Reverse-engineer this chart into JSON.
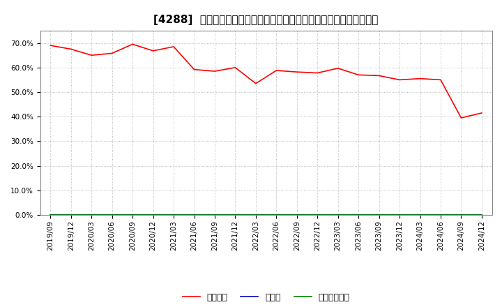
{
  "title": "[4288]  自己資本、のれん、繰延税金資産の総資産に対する比率の推移",
  "x_labels": [
    "2019/09",
    "2019/12",
    "2020/03",
    "2020/06",
    "2020/09",
    "2020/12",
    "2021/03",
    "2021/06",
    "2021/09",
    "2021/12",
    "2022/03",
    "2022/06",
    "2022/09",
    "2022/12",
    "2023/03",
    "2023/06",
    "2023/09",
    "2023/12",
    "2024/03",
    "2024/06",
    "2024/09",
    "2024/12"
  ],
  "equity_values": [
    0.69,
    0.675,
    0.65,
    0.658,
    0.695,
    0.668,
    0.685,
    0.592,
    0.585,
    0.6,
    0.535,
    0.588,
    0.582,
    0.578,
    0.597,
    0.57,
    0.567,
    0.55,
    0.555,
    0.55,
    0.395,
    0.415
  ],
  "noren_values": [
    0.0,
    0.0,
    0.0,
    0.0,
    0.0,
    0.0,
    0.0,
    0.0,
    0.0,
    0.0,
    0.0,
    0.0,
    0.0,
    0.0,
    0.0,
    0.0,
    0.0,
    0.0,
    0.0,
    0.0,
    0.0,
    0.0
  ],
  "deferred_values": [
    0.0,
    0.0,
    0.0,
    0.0,
    0.0,
    0.0,
    0.0,
    0.0,
    0.0,
    0.0,
    0.0,
    0.0,
    0.0,
    0.0,
    0.0,
    0.0,
    0.0,
    0.0,
    0.0,
    0.0,
    0.0,
    0.0
  ],
  "equity_color": "#ff0000",
  "noren_color": "#0000cc",
  "deferred_color": "#008000",
  "bg_color": "#ffffff",
  "plot_bg_color": "#ffffff",
  "grid_color": "#aaaaaa",
  "ylim": [
    0.0,
    0.75
  ],
  "yticks": [
    0.0,
    0.1,
    0.2,
    0.3,
    0.4,
    0.5,
    0.6,
    0.7
  ],
  "legend_labels": [
    "自己資本",
    "のれん",
    "繰延税金資産"
  ],
  "title_fontsize": 11,
  "tick_fontsize": 7.5,
  "legend_fontsize": 9
}
